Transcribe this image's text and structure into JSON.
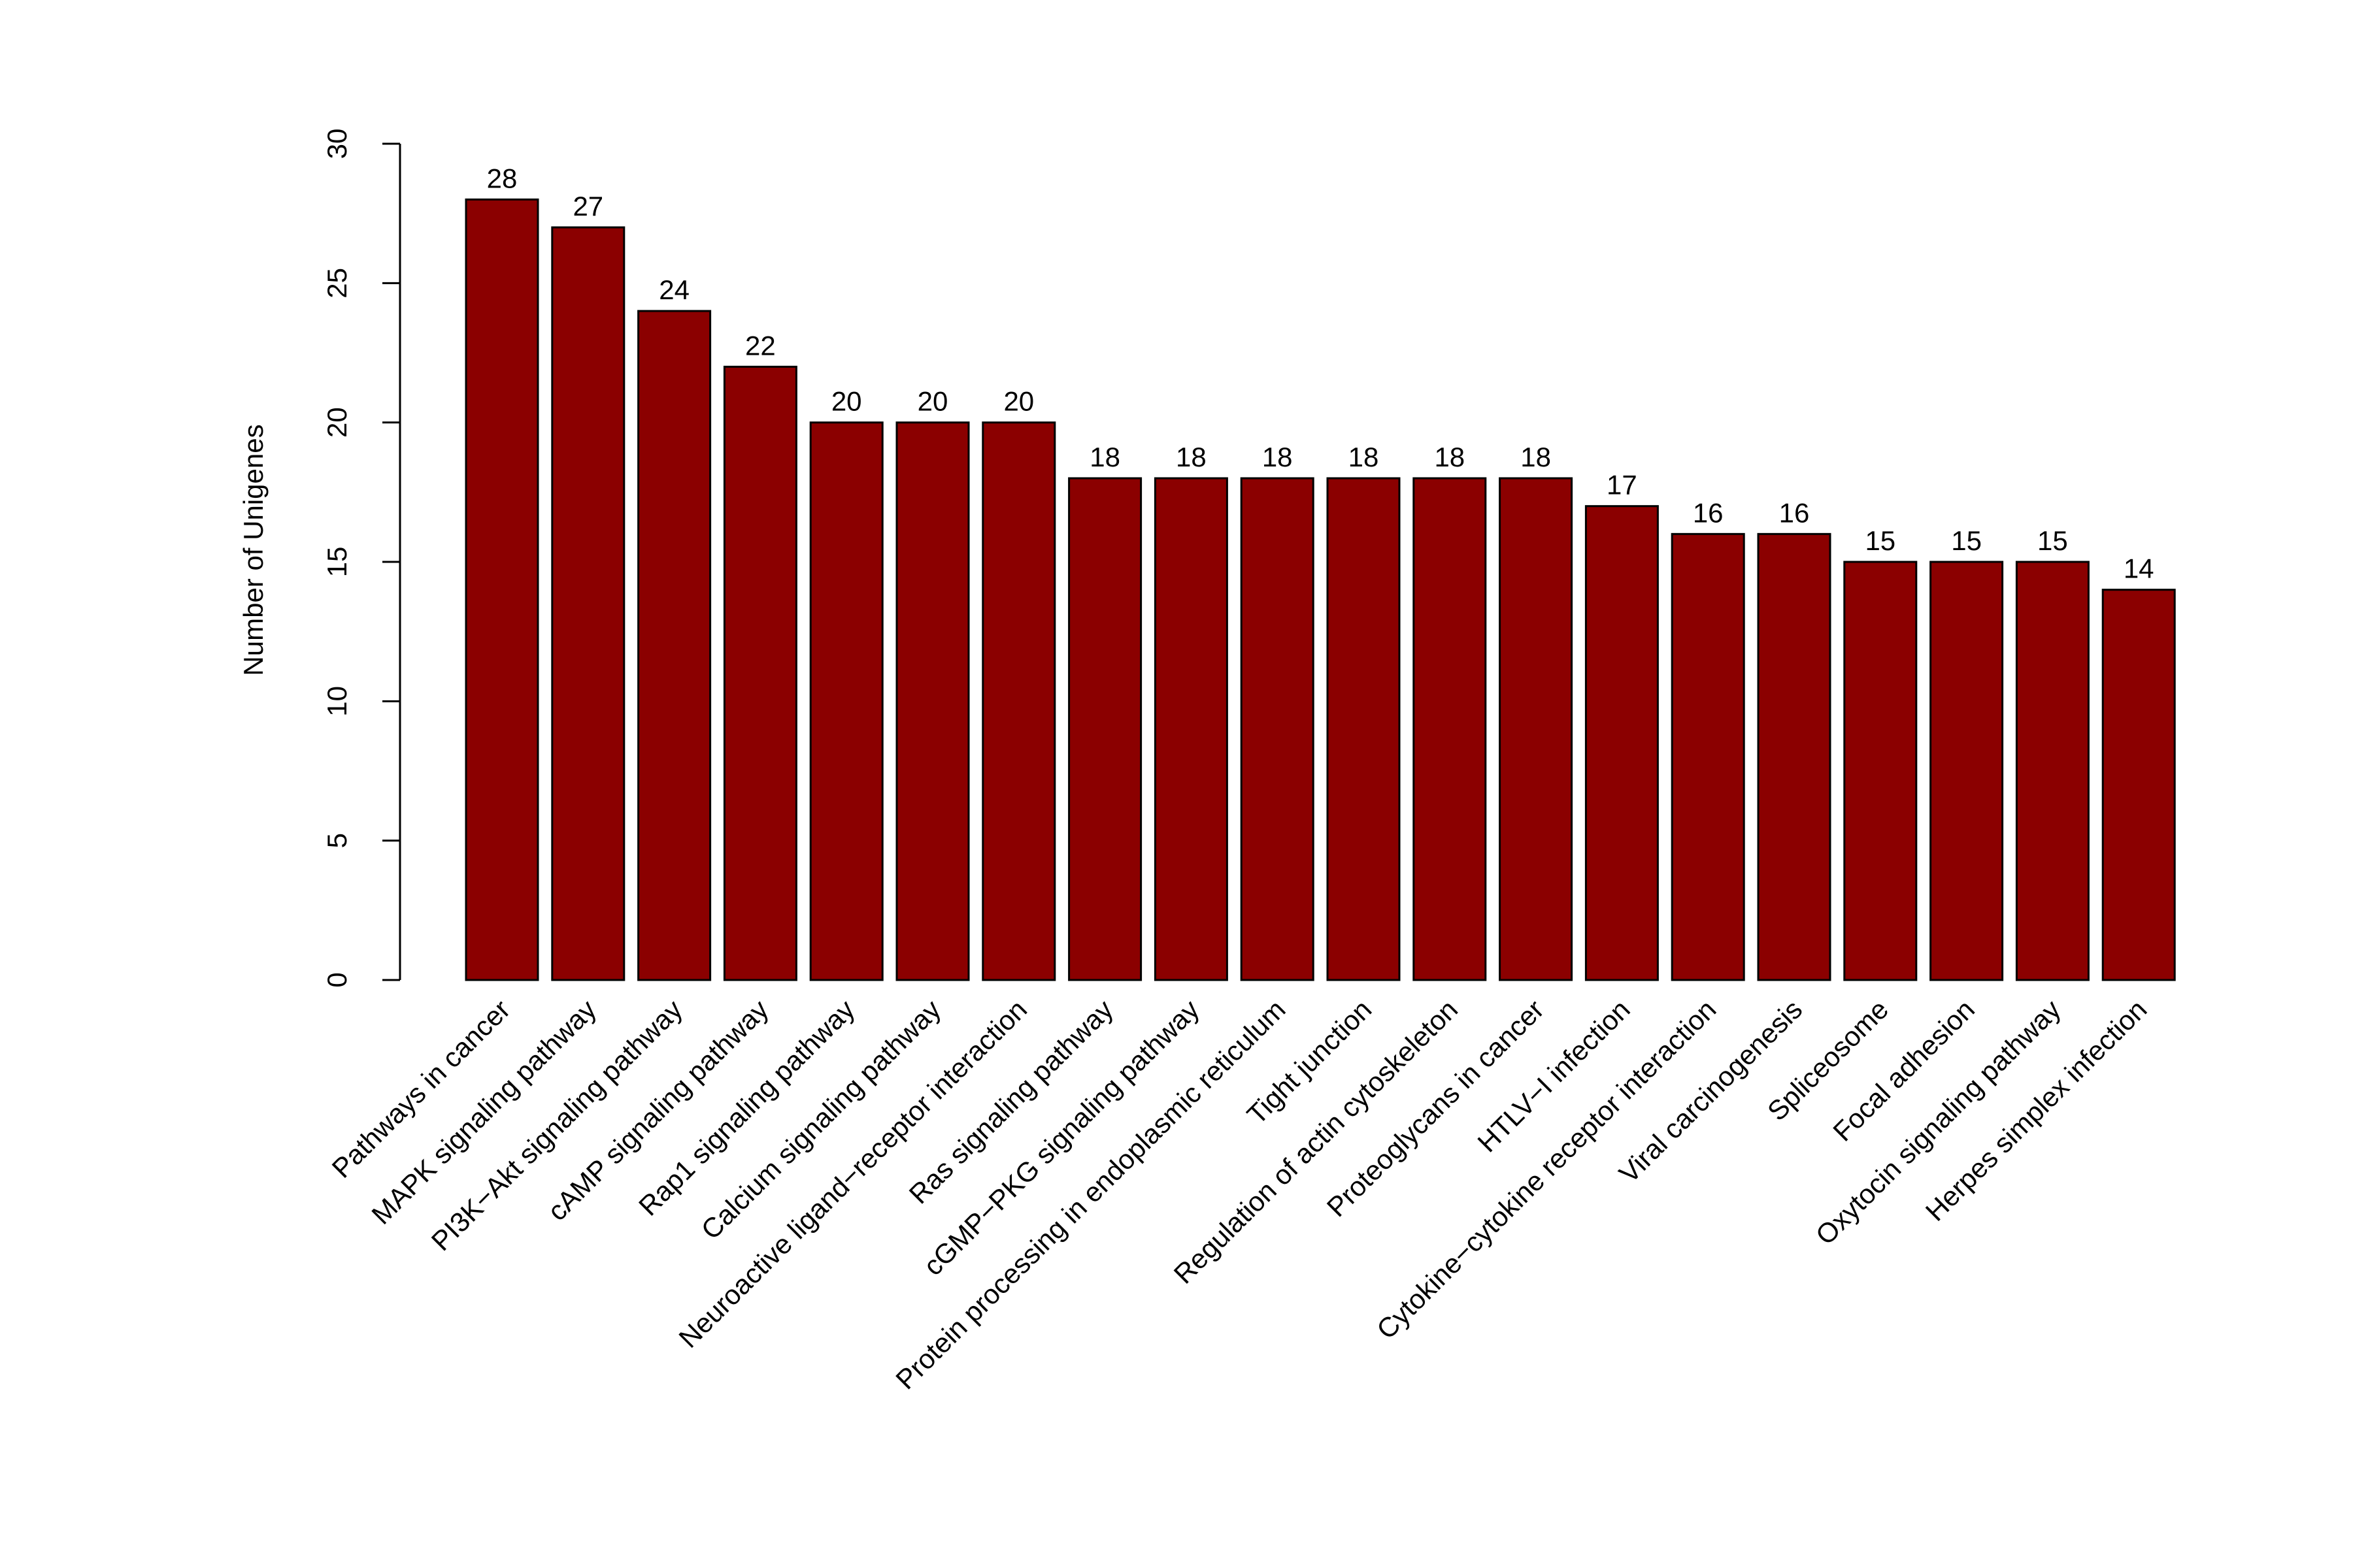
{
  "chart_data": {
    "type": "bar",
    "title": "",
    "xlabel": "",
    "ylabel": "Number of Unigenes",
    "ylim": [
      0,
      30
    ],
    "yticks": [
      0,
      5,
      10,
      15,
      20,
      25,
      30
    ],
    "grid": false,
    "bar_color": "#8B0000",
    "categories": [
      "Pathways in cancer",
      "MAPK signaling pathway",
      "PI3K−Akt signaling pathway",
      "cAMP signaling pathway",
      "Rap1 signaling pathway",
      "Calcium signaling pathway",
      "Neuroactive ligand−receptor interaction",
      "Ras signaling pathway",
      "cGMP−PKG signaling pathway",
      "Protein processing in endoplasmic reticulum",
      "Tight junction",
      "Regulation of actin cytoskeleton",
      "Proteoglycans in cancer",
      "HTLV−I infection",
      "Cytokine−cytokine receptor interaction",
      "Viral carcinogenesis",
      "Spliceosome",
      "Focal adhesion",
      "Oxytocin signaling pathway",
      "Herpes simplex infection"
    ],
    "values": [
      28,
      27,
      24,
      22,
      20,
      20,
      20,
      18,
      18,
      18,
      18,
      18,
      18,
      17,
      16,
      16,
      15,
      15,
      15,
      14
    ]
  }
}
